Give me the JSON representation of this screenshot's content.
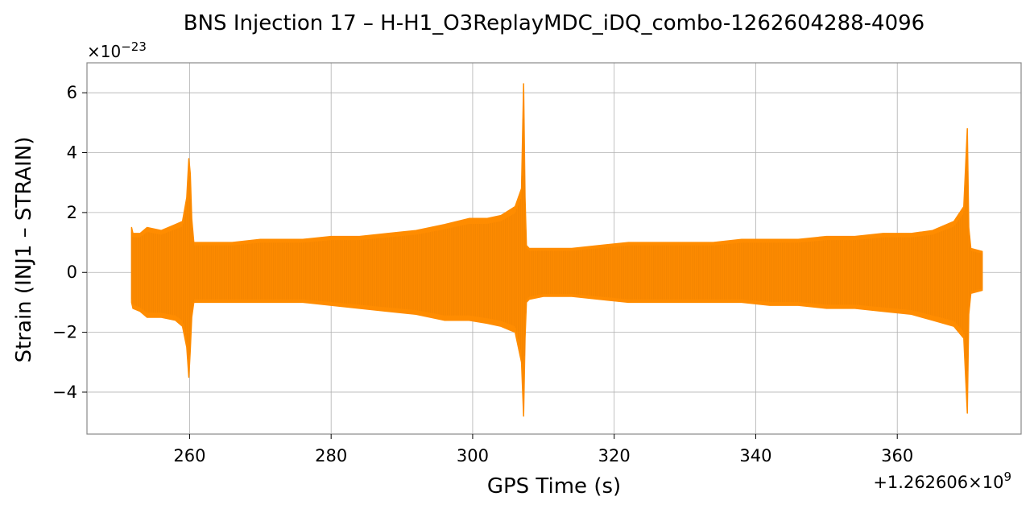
{
  "chart_data": {
    "type": "line",
    "title": "BNS Injection 17 – H-H1_O3ReplayMDC_iDQ_combo-1262604288-4096",
    "xlabel": "GPS Time (s)",
    "ylabel": "Strain (INJ1 – STRAIN)",
    "y_scale_label": "×10",
    "y_scale_exp": "−23",
    "x_offset_label": "+1.262606×10",
    "x_offset_exp": "9",
    "xlim": [
      245.5,
      377.5
    ],
    "ylim": [
      -5.4,
      7.0
    ],
    "xticks": [
      260,
      280,
      300,
      320,
      340,
      360
    ],
    "xtick_labels": [
      "260",
      "280",
      "300",
      "320",
      "340",
      "360"
    ],
    "yticks": [
      -4,
      -2,
      0,
      2,
      4,
      6
    ],
    "ytick_labels": [
      "−4",
      "−2",
      "0",
      "2",
      "4",
      "6"
    ],
    "grid": true,
    "color": "#ff8c00",
    "series": [
      {
        "x": [
          251.8,
          252.0,
          253.0,
          254.0,
          256.0,
          258.0,
          259.0,
          259.6,
          259.9,
          260.1,
          260.3,
          260.6,
          262.0,
          266.0,
          270.0,
          276.0,
          280.0,
          284.0,
          288.0,
          292.0,
          296.0,
          299.5,
          302.0,
          304.0,
          306.0,
          306.9,
          307.2,
          307.4,
          307.6,
          308.0,
          310.0,
          314.0,
          318.0,
          322.0,
          326.0,
          330.0,
          334.0,
          338.0,
          342.0,
          346.0,
          350.0,
          354.0,
          358.0,
          362.0,
          365.0,
          368.0,
          369.4,
          369.9,
          370.1,
          370.4,
          372.0
        ],
        "upper": [
          1.5,
          1.3,
          1.3,
          1.5,
          1.4,
          1.6,
          1.7,
          2.5,
          3.8,
          3.3,
          1.8,
          1.0,
          1.0,
          1.0,
          1.1,
          1.1,
          1.2,
          1.2,
          1.3,
          1.4,
          1.6,
          1.8,
          1.8,
          1.9,
          2.2,
          2.8,
          6.3,
          2.5,
          0.9,
          0.8,
          0.8,
          0.8,
          0.9,
          1.0,
          1.0,
          1.0,
          1.0,
          1.1,
          1.1,
          1.1,
          1.2,
          1.2,
          1.3,
          1.3,
          1.4,
          1.7,
          2.2,
          4.8,
          1.5,
          0.8,
          0.7
        ],
        "lower": [
          -1.0,
          -1.2,
          -1.3,
          -1.5,
          -1.5,
          -1.6,
          -1.8,
          -2.5,
          -3.5,
          -2.6,
          -1.5,
          -1.0,
          -1.0,
          -1.0,
          -1.0,
          -1.0,
          -1.1,
          -1.2,
          -1.3,
          -1.4,
          -1.6,
          -1.6,
          -1.7,
          -1.8,
          -2.0,
          -3.0,
          -4.8,
          -2.2,
          -1.0,
          -0.9,
          -0.8,
          -0.8,
          -0.9,
          -1.0,
          -1.0,
          -1.0,
          -1.0,
          -1.0,
          -1.1,
          -1.1,
          -1.2,
          -1.2,
          -1.3,
          -1.4,
          -1.6,
          -1.8,
          -2.2,
          -4.7,
          -1.4,
          -0.7,
          -0.6
        ]
      }
    ]
  }
}
